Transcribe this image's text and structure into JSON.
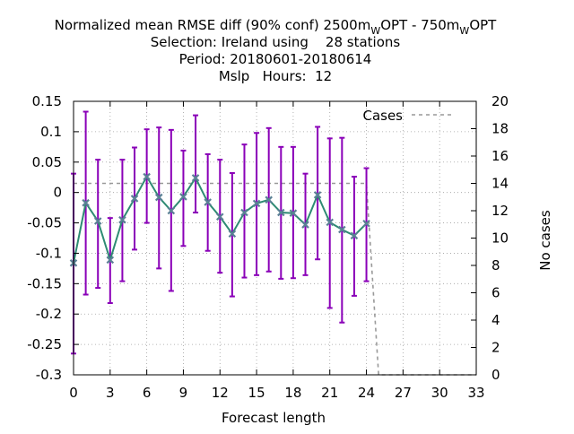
{
  "chart_data": {
    "type": "line",
    "title": {
      "line1_main": "Normalized mean RMSE diff (90% conf) 2500m",
      "line1_sub1": "W",
      "line1_mid": "OPT - 750m",
      "line1_sub2": "W",
      "line1_end": "OPT",
      "line2": "Selection: Ireland using    28 stations",
      "line3": "Period: 20180601-20180614",
      "line4": "Mslp   Hours:  12"
    },
    "xlabel": "Forecast length",
    "ylabel_right": "No cases",
    "xlim": [
      0,
      33
    ],
    "ylim": [
      -0.3,
      0.15
    ],
    "y2lim": [
      0,
      20
    ],
    "x_ticks": [
      "0",
      "3",
      "6",
      "9",
      "12",
      "15",
      "18",
      "21",
      "24",
      "27",
      "30",
      "33"
    ],
    "y_ticks": [
      "0.15",
      "0.1",
      "0.05",
      "0",
      "-0.05",
      "-0.1",
      "-0.15",
      "-0.2",
      "-0.25",
      "-0.3"
    ],
    "y2_ticks": [
      "20",
      "18",
      "16",
      "14",
      "12",
      "10",
      "8",
      "6",
      "4",
      "2",
      "0"
    ],
    "grid": true,
    "legend": {
      "position": "top-right",
      "entries": [
        "Cases"
      ]
    },
    "series": [
      {
        "color": "#2e8b73",
        "x": [
          0,
          1,
          2,
          3,
          4,
          5,
          6,
          7,
          8,
          9,
          10,
          11,
          12,
          13,
          14,
          15,
          16,
          17,
          18,
          19,
          20,
          21,
          22,
          23,
          24
        ],
        "values": [
          -0.116,
          -0.017,
          -0.047,
          -0.111,
          -0.045,
          -0.01,
          0.026,
          -0.008,
          -0.03,
          -0.007,
          0.024,
          -0.016,
          -0.04,
          -0.068,
          -0.033,
          -0.018,
          -0.012,
          -0.033,
          -0.034,
          -0.053,
          -0.004,
          -0.049,
          -0.061,
          -0.071,
          -0.051
        ],
        "error_low": [
          -0.265,
          -0.168,
          -0.157,
          -0.182,
          -0.146,
          -0.094,
          -0.05,
          -0.125,
          -0.162,
          -0.088,
          -0.033,
          -0.096,
          -0.132,
          -0.171,
          -0.14,
          -0.136,
          -0.13,
          -0.142,
          -0.141,
          -0.136,
          -0.11,
          -0.19,
          -0.214,
          -0.17,
          -0.146
        ],
        "error_high": [
          0.031,
          0.133,
          0.054,
          -0.042,
          0.054,
          0.074,
          0.104,
          0.107,
          0.103,
          0.069,
          0.127,
          0.063,
          0.054,
          0.032,
          0.079,
          0.098,
          0.106,
          0.075,
          0.075,
          0.031,
          0.108,
          0.089,
          0.09,
          0.026,
          0.04
        ],
        "error_color": "#8a00b8"
      },
      {
        "name": "Cases",
        "axis": "right",
        "color": "#999999",
        "style": "dashed",
        "x": [
          0,
          24,
          25,
          33
        ],
        "values": [
          14,
          14,
          0,
          0
        ]
      }
    ]
  }
}
